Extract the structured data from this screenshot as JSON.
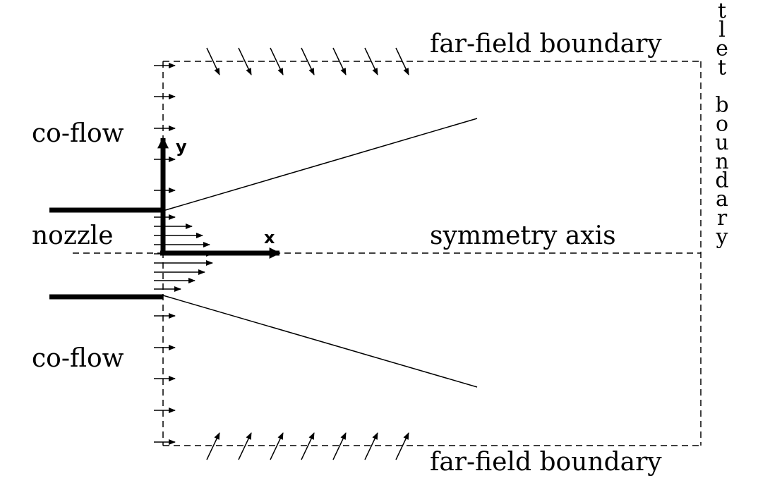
{
  "labels": {
    "far_field_top": "far-field boundary",
    "far_field_bottom": "far-field boundary",
    "co_flow_top": "co-flow",
    "co_flow_bottom": "co-flow",
    "nozzle": "nozzle",
    "symmetry_axis": "symmetry axis",
    "outlet_boundary": "outlet boundary",
    "x_axis": "x",
    "y_axis": "y"
  },
  "colors": {
    "ink": "#000000",
    "background": "#ffffff"
  }
}
